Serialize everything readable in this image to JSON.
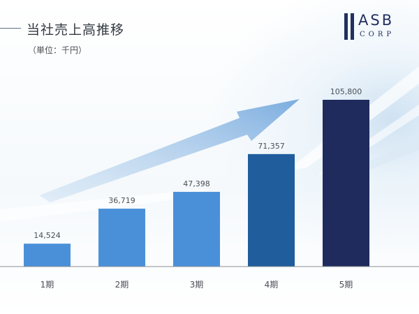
{
  "header": {
    "title": "当社売上高推移",
    "unit": "（単位：千円）"
  },
  "logo": {
    "name": "ASB",
    "sub": "CORP",
    "color": "#23305f"
  },
  "chart_data": {
    "type": "bar",
    "title": "当社売上高推移",
    "unit": "（単位：千円）",
    "categories": [
      "1期",
      "2期",
      "3期",
      "4期",
      "5期"
    ],
    "values": [
      14524,
      36719,
      47398,
      71357,
      105800
    ],
    "value_labels": [
      "14,524",
      "36,719",
      "47,398",
      "71,357",
      "105,800"
    ],
    "bar_colors": [
      "#4a90d9",
      "#4a90d9",
      "#4a90d9",
      "#1f5d9c",
      "#1f2b5c"
    ],
    "ylim": [
      0,
      105800
    ],
    "grid": false,
    "legend": "none",
    "trend_arrow": true
  }
}
